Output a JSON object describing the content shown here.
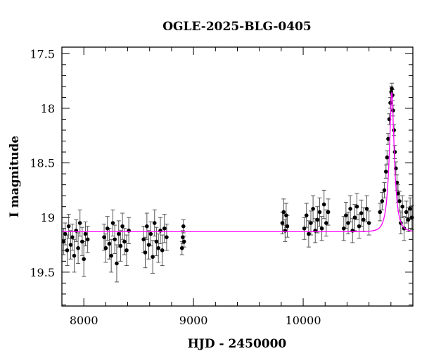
{
  "chart_data": {
    "type": "scatter",
    "title": "OGLE-2025-BLG-0405",
    "xlabel": "HJD - 2450000",
    "ylabel": "I magnitude",
    "xlim": [
      7800,
      11000
    ],
    "ylim": [
      19.81,
      17.44
    ],
    "y_inverted": true,
    "x_ticks": [
      8000,
      9000,
      10000
    ],
    "x_tick_labels": [
      "8000",
      "9000",
      "10000"
    ],
    "x_minor_step": 200,
    "y_ticks": [
      17.5,
      18,
      18.5,
      19,
      19.5
    ],
    "y_tick_labels": [
      "17.5",
      "18",
      "18.5",
      "19",
      "19.5"
    ],
    "y_minor_step": 0.1,
    "grid": false,
    "colors": {
      "points": "#000000",
      "errorbars": "#555555",
      "model": "#ff00ff"
    },
    "series": [
      {
        "kind": "data-with-errorbars",
        "points": [
          [
            7815,
            19.22,
            0.12
          ],
          [
            7830,
            19.15,
            0.1
          ],
          [
            7848,
            19.3,
            0.14
          ],
          [
            7862,
            19.08,
            0.11
          ],
          [
            7880,
            19.25,
            0.13
          ],
          [
            7895,
            19.18,
            0.12
          ],
          [
            7912,
            19.35,
            0.15
          ],
          [
            7930,
            19.12,
            0.1
          ],
          [
            7948,
            19.28,
            0.14
          ],
          [
            7965,
            19.05,
            0.12
          ],
          [
            7985,
            19.22,
            0.13
          ],
          [
            8000,
            19.38,
            0.16
          ],
          [
            8015,
            19.15,
            0.11
          ],
          [
            8035,
            19.2,
            0.12
          ],
          [
            8185,
            19.18,
            0.12
          ],
          [
            8200,
            19.28,
            0.13
          ],
          [
            8215,
            19.1,
            0.11
          ],
          [
            8232,
            19.24,
            0.14
          ],
          [
            8250,
            19.35,
            0.15
          ],
          [
            8265,
            19.05,
            0.12
          ],
          [
            8282,
            19.2,
            0.13
          ],
          [
            8300,
            19.42,
            0.17
          ],
          [
            8318,
            19.15,
            0.12
          ],
          [
            8335,
            19.26,
            0.14
          ],
          [
            8352,
            19.08,
            0.12
          ],
          [
            8370,
            19.22,
            0.12
          ],
          [
            8390,
            19.3,
            0.14
          ],
          [
            8410,
            19.12,
            0.12
          ],
          [
            8545,
            19.2,
            0.12
          ],
          [
            8560,
            19.32,
            0.14
          ],
          [
            8575,
            19.08,
            0.12
          ],
          [
            8592,
            19.25,
            0.13
          ],
          [
            8610,
            19.15,
            0.11
          ],
          [
            8628,
            19.36,
            0.15
          ],
          [
            8645,
            19.05,
            0.12
          ],
          [
            8662,
            19.22,
            0.13
          ],
          [
            8680,
            19.28,
            0.13
          ],
          [
            8698,
            19.12,
            0.12
          ],
          [
            8715,
            19.3,
            0.14
          ],
          [
            8735,
            19.1,
            0.13
          ],
          [
            8755,
            19.18,
            0.12
          ],
          [
            8895,
            19.28,
            0.06
          ],
          [
            8902,
            19.18,
            0.06
          ],
          [
            8908,
            19.08,
            0.06
          ],
          [
            8914,
            19.22,
            0.05
          ],
          [
            9810,
            19.05,
            0.1
          ],
          [
            9822,
            18.95,
            0.12
          ],
          [
            9835,
            19.12,
            0.1
          ],
          [
            9845,
            18.98,
            0.11
          ],
          [
            9855,
            19.08,
            0.1
          ],
          [
            10010,
            19.1,
            0.1
          ],
          [
            10030,
            18.98,
            0.11
          ],
          [
            10050,
            19.15,
            0.12
          ],
          [
            10070,
            19.05,
            0.11
          ],
          [
            10090,
            18.92,
            0.12
          ],
          [
            10110,
            19.12,
            0.11
          ],
          [
            10130,
            19.02,
            0.12
          ],
          [
            10150,
            18.95,
            0.13
          ],
          [
            10170,
            19.1,
            0.11
          ],
          [
            10190,
            18.88,
            0.13
          ],
          [
            10210,
            19.05,
            0.12
          ],
          [
            10228,
            18.95,
            0.12
          ],
          [
            10370,
            19.1,
            0.11
          ],
          [
            10390,
            18.98,
            0.12
          ],
          [
            10410,
            19.05,
            0.1
          ],
          [
            10430,
            18.92,
            0.12
          ],
          [
            10450,
            19.12,
            0.11
          ],
          [
            10470,
            19.0,
            0.12
          ],
          [
            10490,
            18.9,
            0.12
          ],
          [
            10510,
            19.08,
            0.11
          ],
          [
            10530,
            18.96,
            0.12
          ],
          [
            10550,
            19.02,
            0.11
          ],
          [
            10580,
            18.92,
            0.12
          ],
          [
            10600,
            19.05,
            0.11
          ],
          [
            10700,
            18.95,
            0.08
          ],
          [
            10720,
            18.85,
            0.08
          ],
          [
            10740,
            18.75,
            0.07
          ],
          [
            10755,
            18.58,
            0.06
          ],
          [
            10765,
            18.45,
            0.06
          ],
          [
            10775,
            18.28,
            0.05
          ],
          [
            10785,
            18.1,
            0.05
          ],
          [
            10795,
            17.95,
            0.05
          ],
          [
            10803,
            17.85,
            0.05
          ],
          [
            10808,
            17.82,
            0.05
          ],
          [
            10814,
            17.88,
            0.05
          ],
          [
            10820,
            18.02,
            0.05
          ],
          [
            10828,
            18.2,
            0.05
          ],
          [
            10836,
            18.4,
            0.06
          ],
          [
            10845,
            18.55,
            0.06
          ],
          [
            10855,
            18.68,
            0.07
          ],
          [
            10865,
            18.78,
            0.08
          ],
          [
            10878,
            18.85,
            0.09
          ],
          [
            10890,
            19.05,
            0.1
          ],
          [
            10905,
            18.9,
            0.1
          ],
          [
            10920,
            19.1,
            0.11
          ],
          [
            10940,
            18.95,
            0.1
          ],
          [
            10958,
            19.02,
            0.11
          ],
          [
            10975,
            18.92,
            0.1
          ],
          [
            10992,
            19.0,
            0.11
          ]
        ]
      },
      {
        "kind": "model-curve",
        "model": {
          "type": "PSPL",
          "t0": 10808,
          "u0": 0.32,
          "tE": 47,
          "baseline_mag": 19.13
        }
      }
    ]
  }
}
